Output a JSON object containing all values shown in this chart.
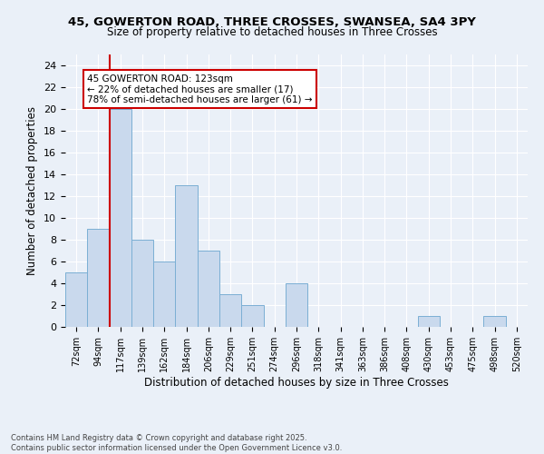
{
  "title_line1": "45, GOWERTON ROAD, THREE CROSSES, SWANSEA, SA4 3PY",
  "title_line2": "Size of property relative to detached houses in Three Crosses",
  "xlabel": "Distribution of detached houses by size in Three Crosses",
  "ylabel": "Number of detached properties",
  "bar_color": "#c9d9ed",
  "bar_edge_color": "#7bafd4",
  "bin_labels": [
    "72sqm",
    "94sqm",
    "117sqm",
    "139sqm",
    "162sqm",
    "184sqm",
    "206sqm",
    "229sqm",
    "251sqm",
    "274sqm",
    "296sqm",
    "318sqm",
    "341sqm",
    "363sqm",
    "386sqm",
    "408sqm",
    "430sqm",
    "453sqm",
    "475sqm",
    "498sqm",
    "520sqm"
  ],
  "values": [
    5,
    9,
    20,
    8,
    6,
    13,
    7,
    3,
    2,
    0,
    4,
    0,
    0,
    0,
    0,
    0,
    1,
    0,
    0,
    1,
    0
  ],
  "ylim": [
    0,
    25
  ],
  "yticks": [
    0,
    2,
    4,
    6,
    8,
    10,
    12,
    14,
    16,
    18,
    20,
    22,
    24
  ],
  "property_bin_index": 2,
  "annotation_line1": "45 GOWERTON ROAD: 123sqm",
  "annotation_line2": "← 22% of detached houses are smaller (17)",
  "annotation_line3": "78% of semi-detached houses are larger (61) →",
  "footer_line1": "Contains HM Land Registry data © Crown copyright and database right 2025.",
  "footer_line2": "Contains public sector information licensed under the Open Government Licence v3.0.",
  "background_color": "#eaf0f8",
  "plot_bg_color": "#eaf0f8",
  "grid_color": "#ffffff",
  "annotation_box_edge": "#cc0000",
  "red_line_color": "#cc0000"
}
